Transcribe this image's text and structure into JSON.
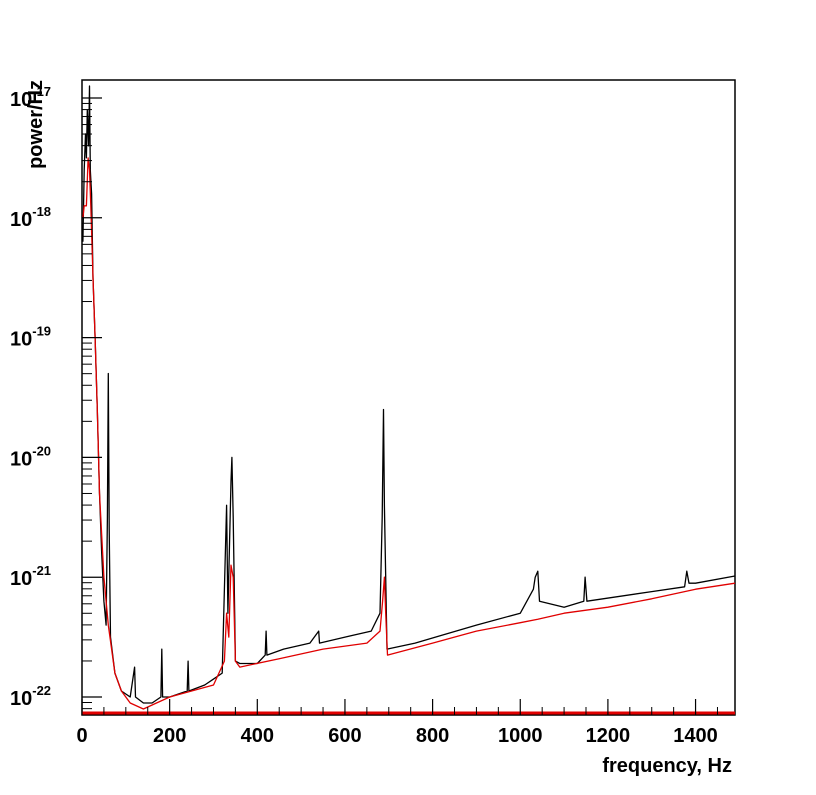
{
  "chart_data": {
    "type": "line",
    "xlabel": "frequency, Hz",
    "ylabel": "power/Hz",
    "xlim": [
      0,
      1490
    ],
    "ylim_log10": [
      -22.15,
      -16.85
    ],
    "y_scale": "log",
    "grid": false,
    "x_ticks": [
      "0",
      "200",
      "400",
      "600",
      "800",
      "1000",
      "1200",
      "1400"
    ],
    "y_ticks": [
      {
        "base": "10",
        "exp": "-22"
      },
      {
        "base": "10",
        "exp": "-21"
      },
      {
        "base": "10",
        "exp": "-20"
      },
      {
        "base": "10",
        "exp": "-19"
      },
      {
        "base": "10",
        "exp": "-18"
      },
      {
        "base": "10",
        "exp": "-17"
      }
    ],
    "series": [
      {
        "color": "#000000",
        "points": [
          [
            2,
            -18.2
          ],
          [
            5,
            -17.6
          ],
          [
            8,
            -17.3
          ],
          [
            10,
            -17.5
          ],
          [
            12,
            -17.1
          ],
          [
            15,
            -17.4
          ],
          [
            17,
            -16.9
          ],
          [
            19,
            -17.6
          ],
          [
            22,
            -17.8
          ],
          [
            25,
            -18.5
          ],
          [
            30,
            -19.0
          ],
          [
            35,
            -19.6
          ],
          [
            40,
            -20.3
          ],
          [
            45,
            -20.8
          ],
          [
            50,
            -21.2
          ],
          [
            55,
            -21.4
          ],
          [
            58,
            -20.5
          ],
          [
            60,
            -19.3
          ],
          [
            62,
            -20.6
          ],
          [
            65,
            -21.5
          ],
          [
            75,
            -21.8
          ],
          [
            90,
            -21.95
          ],
          [
            110,
            -22.0
          ],
          [
            120,
            -21.75
          ],
          [
            122,
            -22.0
          ],
          [
            140,
            -22.05
          ],
          [
            160,
            -22.05
          ],
          [
            180,
            -22.0
          ],
          [
            182,
            -21.6
          ],
          [
            184,
            -22.0
          ],
          [
            200,
            -22.0
          ],
          [
            240,
            -21.95
          ],
          [
            242,
            -21.7
          ],
          [
            244,
            -21.95
          ],
          [
            280,
            -21.9
          ],
          [
            300,
            -21.85
          ],
          [
            320,
            -21.8
          ],
          [
            330,
            -20.4
          ],
          [
            333,
            -21.3
          ],
          [
            336,
            -20.8
          ],
          [
            340,
            -20.2
          ],
          [
            342,
            -20.0
          ],
          [
            345,
            -20.5
          ],
          [
            350,
            -21.7
          ],
          [
            360,
            -21.72
          ],
          [
            400,
            -21.72
          ],
          [
            418,
            -21.65
          ],
          [
            420,
            -21.45
          ],
          [
            422,
            -21.65
          ],
          [
            460,
            -21.6
          ],
          [
            520,
            -21.55
          ],
          [
            540,
            -21.45
          ],
          [
            542,
            -21.55
          ],
          [
            600,
            -21.5
          ],
          [
            660,
            -21.45
          ],
          [
            680,
            -21.3
          ],
          [
            685,
            -20.5
          ],
          [
            688,
            -19.6
          ],
          [
            690,
            -20.4
          ],
          [
            693,
            -21.0
          ],
          [
            696,
            -21.6
          ],
          [
            760,
            -21.55
          ],
          [
            900,
            -21.4
          ],
          [
            1000,
            -21.3
          ],
          [
            1030,
            -21.1
          ],
          [
            1034,
            -21.0
          ],
          [
            1040,
            -20.95
          ],
          [
            1044,
            -21.2
          ],
          [
            1100,
            -21.25
          ],
          [
            1145,
            -21.2
          ],
          [
            1148,
            -21.0
          ],
          [
            1152,
            -21.2
          ],
          [
            1300,
            -21.12
          ],
          [
            1375,
            -21.08
          ],
          [
            1380,
            -20.95
          ],
          [
            1385,
            -21.05
          ],
          [
            1400,
            -21.05
          ],
          [
            1490,
            -20.99
          ]
        ]
      },
      {
        "color": "#e00000",
        "points": [
          [
            2,
            -18.0
          ],
          [
            5,
            -17.9
          ],
          [
            10,
            -17.9
          ],
          [
            14,
            -17.5
          ],
          [
            17,
            -17.6
          ],
          [
            20,
            -17.9
          ],
          [
            25,
            -18.5
          ],
          [
            30,
            -19.0
          ],
          [
            35,
            -19.6
          ],
          [
            40,
            -20.3
          ],
          [
            50,
            -21.0
          ],
          [
            60,
            -21.4
          ],
          [
            75,
            -21.8
          ],
          [
            90,
            -21.95
          ],
          [
            110,
            -22.05
          ],
          [
            140,
            -22.1
          ],
          [
            170,
            -22.05
          ],
          [
            200,
            -22.0
          ],
          [
            250,
            -21.95
          ],
          [
            300,
            -21.9
          ],
          [
            325,
            -21.7
          ],
          [
            330,
            -21.3
          ],
          [
            335,
            -21.5
          ],
          [
            340,
            -20.9
          ],
          [
            345,
            -21.0
          ],
          [
            350,
            -21.7
          ],
          [
            360,
            -21.75
          ],
          [
            450,
            -21.68
          ],
          [
            550,
            -21.6
          ],
          [
            650,
            -21.55
          ],
          [
            680,
            -21.45
          ],
          [
            686,
            -21.2
          ],
          [
            690,
            -21.0
          ],
          [
            693,
            -21.3
          ],
          [
            697,
            -21.65
          ],
          [
            800,
            -21.55
          ],
          [
            900,
            -21.45
          ],
          [
            1000,
            -21.38
          ],
          [
            1040,
            -21.35
          ],
          [
            1100,
            -21.3
          ],
          [
            1200,
            -21.25
          ],
          [
            1300,
            -21.18
          ],
          [
            1400,
            -21.1
          ],
          [
            1490,
            -21.05
          ]
        ]
      }
    ]
  }
}
